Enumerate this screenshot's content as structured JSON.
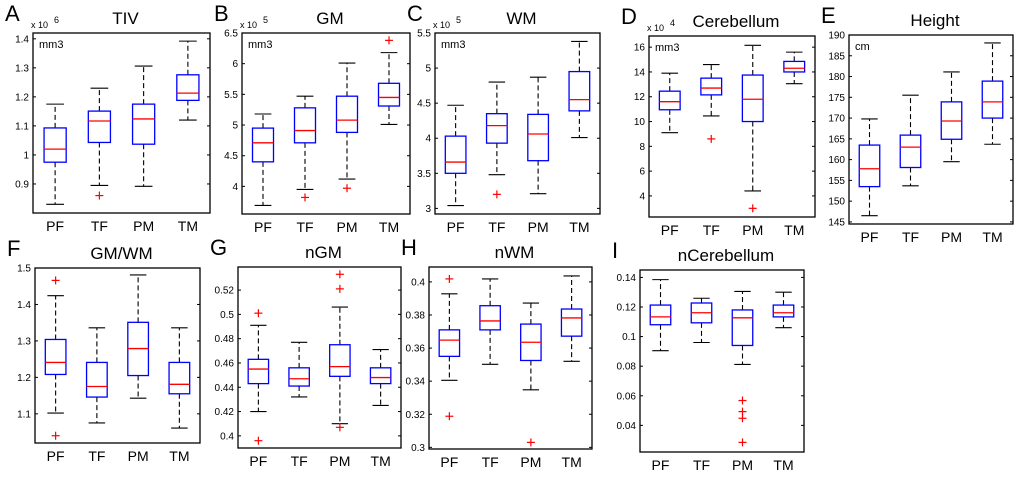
{
  "figure": {
    "colors": {
      "box": "#0000ff",
      "median": "#ff0000",
      "whisker": "#000000",
      "outlier": "#ff0000",
      "frame": "#000000"
    }
  },
  "chart_data": [
    {
      "type": "box",
      "letter": "A",
      "title": "TIV",
      "unit": "mm3",
      "multiplier": "x 10^6",
      "multiplier_base": "x 10",
      "multiplier_exp": "6",
      "categories": [
        "PF",
        "TF",
        "PM",
        "TM"
      ],
      "ylim": [
        0.8,
        1.42
      ],
      "yticks": [
        0.9,
        1,
        1.1,
        1.2,
        1.3,
        1.4
      ],
      "ytick_labels": [
        "0.9",
        "1",
        "1.1",
        "1.2",
        "1.3",
        "1.4"
      ],
      "boxes": [
        {
          "whisker_low": 0.83,
          "q1": 0.975,
          "median": 1.02,
          "q3": 1.093,
          "whisker_high": 1.175,
          "outliers": []
        },
        {
          "whisker_low": 0.895,
          "q1": 1.043,
          "median": 1.117,
          "q3": 1.151,
          "whisker_high": 1.23,
          "outliers": [
            0.86
          ]
        },
        {
          "whisker_low": 0.892,
          "q1": 1.037,
          "median": 1.124,
          "q3": 1.175,
          "whisker_high": 1.306,
          "outliers": []
        },
        {
          "whisker_low": 1.12,
          "q1": 1.188,
          "median": 1.213,
          "q3": 1.276,
          "whisker_high": 1.392,
          "outliers": []
        }
      ]
    },
    {
      "type": "box",
      "letter": "B",
      "title": "GM",
      "unit": "mm3",
      "multiplier": "x 10^5",
      "multiplier_base": "x 10",
      "multiplier_exp": "5",
      "categories": [
        "PF",
        "TF",
        "PM",
        "TM"
      ],
      "ylim": [
        3.55,
        6.5
      ],
      "yticks": [
        4,
        4.5,
        5,
        5.5,
        6,
        6.5
      ],
      "ytick_labels": [
        "4",
        "4.5",
        "5",
        "5.5",
        "6",
        "6.5"
      ],
      "boxes": [
        {
          "whisker_low": 3.69,
          "q1": 4.4,
          "median": 4.71,
          "q3": 4.95,
          "whisker_high": 5.18,
          "outliers": []
        },
        {
          "whisker_low": 3.95,
          "q1": 4.71,
          "median": 4.91,
          "q3": 5.28,
          "whisker_high": 5.47,
          "outliers": [
            3.82
          ]
        },
        {
          "whisker_low": 4.12,
          "q1": 4.88,
          "median": 5.08,
          "q3": 5.47,
          "whisker_high": 6.01,
          "outliers": [
            3.97
          ]
        },
        {
          "whisker_low": 5.01,
          "q1": 5.31,
          "median": 5.45,
          "q3": 5.68,
          "whisker_high": 6.18,
          "outliers": [
            6.38
          ]
        }
      ]
    },
    {
      "type": "box",
      "letter": "C",
      "title": "WM",
      "unit": "mm3",
      "multiplier": "x 10^5",
      "multiplier_base": "x 10",
      "multiplier_exp": "5",
      "categories": [
        "PF",
        "TF",
        "PM",
        "TM"
      ],
      "ylim": [
        2.92,
        5.5
      ],
      "yticks": [
        3,
        3.5,
        4,
        4.5,
        5,
        5.5
      ],
      "ytick_labels": [
        "3",
        "3.5",
        "4",
        "4.5",
        "5",
        "5.5"
      ],
      "boxes": [
        {
          "whisker_low": 3.04,
          "q1": 3.5,
          "median": 3.66,
          "q3": 4.03,
          "whisker_high": 4.47,
          "outliers": []
        },
        {
          "whisker_low": 3.48,
          "q1": 3.93,
          "median": 4.18,
          "q3": 4.35,
          "whisker_high": 4.8,
          "outliers": [
            3.2
          ]
        },
        {
          "whisker_low": 3.21,
          "q1": 3.68,
          "median": 4.06,
          "q3": 4.34,
          "whisker_high": 4.87,
          "outliers": []
        },
        {
          "whisker_low": 4.01,
          "q1": 4.39,
          "median": 4.55,
          "q3": 4.95,
          "whisker_high": 5.38,
          "outliers": []
        }
      ]
    },
    {
      "type": "box",
      "letter": "D",
      "title": "Cerebellum",
      "unit": "mm3",
      "multiplier": "x 10^4",
      "multiplier_base": "x 10",
      "multiplier_exp": "4",
      "categories": [
        "PF",
        "TF",
        "PM",
        "TM"
      ],
      "ylim": [
        2.3,
        16.9
      ],
      "yticks": [
        4,
        6,
        8,
        10,
        12,
        14,
        16
      ],
      "ytick_labels": [
        "4",
        "6",
        "8",
        "10",
        "12",
        "14",
        "16"
      ],
      "boxes": [
        {
          "whisker_low": 9.1,
          "q1": 10.95,
          "median": 11.6,
          "q3": 12.45,
          "whisker_high": 13.9,
          "outliers": []
        },
        {
          "whisker_low": 10.45,
          "q1": 12.15,
          "median": 12.7,
          "q3": 13.5,
          "whisker_high": 14.6,
          "outliers": [
            8.6
          ]
        },
        {
          "whisker_low": 4.4,
          "q1": 10.0,
          "median": 11.8,
          "q3": 13.75,
          "whisker_high": 16.15,
          "outliers": [
            3.0
          ]
        },
        {
          "whisker_low": 13.05,
          "q1": 14.0,
          "median": 14.3,
          "q3": 14.85,
          "whisker_high": 15.6,
          "outliers": []
        }
      ]
    },
    {
      "type": "box",
      "letter": "E",
      "title": "Height",
      "unit": "cm",
      "multiplier": "",
      "multiplier_base": "",
      "multiplier_exp": "",
      "categories": [
        "PF",
        "TF",
        "PM",
        "TM"
      ],
      "ylim": [
        144.5,
        190
      ],
      "yticks": [
        145,
        150,
        155,
        160,
        165,
        170,
        175,
        180,
        185,
        190
      ],
      "ytick_labels": [
        "145",
        "150",
        "155",
        "160",
        "165",
        "170",
        "175",
        "180",
        "185",
        "190"
      ],
      "boxes": [
        {
          "whisker_low": 146.5,
          "q1": 153.5,
          "median": 157.8,
          "q3": 163.5,
          "whisker_high": 169.8,
          "outliers": []
        },
        {
          "whisker_low": 153.7,
          "q1": 158.1,
          "median": 163.0,
          "q3": 165.9,
          "whisker_high": 175.5,
          "outliers": []
        },
        {
          "whisker_low": 159.5,
          "q1": 164.9,
          "median": 169.3,
          "q3": 173.9,
          "whisker_high": 181.1,
          "outliers": []
        },
        {
          "whisker_low": 163.7,
          "q1": 170.0,
          "median": 173.9,
          "q3": 178.9,
          "whisker_high": 188.1,
          "outliers": []
        }
      ]
    },
    {
      "type": "box",
      "letter": "F",
      "title": "GM/WM",
      "unit": "",
      "multiplier": "",
      "multiplier_base": "",
      "multiplier_exp": "",
      "categories": [
        "PF",
        "TF",
        "PM",
        "TM"
      ],
      "ylim": [
        1.02,
        1.5
      ],
      "yticks": [
        1.1,
        1.2,
        1.3,
        1.4,
        1.5
      ],
      "ytick_labels": [
        "1.1",
        "1.2",
        "1.3",
        "1.4",
        "1.5"
      ],
      "boxes": [
        {
          "whisker_low": 1.102,
          "q1": 1.208,
          "median": 1.241,
          "q3": 1.304,
          "whisker_high": 1.424,
          "outliers": [
            1.466,
            1.04
          ]
        },
        {
          "whisker_low": 1.075,
          "q1": 1.146,
          "median": 1.175,
          "q3": 1.241,
          "whisker_high": 1.336,
          "outliers": []
        },
        {
          "whisker_low": 1.143,
          "q1": 1.205,
          "median": 1.279,
          "q3": 1.351,
          "whisker_high": 1.481,
          "outliers": []
        },
        {
          "whisker_low": 1.061,
          "q1": 1.155,
          "median": 1.181,
          "q3": 1.241,
          "whisker_high": 1.336,
          "outliers": []
        }
      ]
    },
    {
      "type": "box",
      "letter": "G",
      "title": "nGM",
      "unit": "",
      "multiplier": "",
      "multiplier_base": "",
      "multiplier_exp": "",
      "categories": [
        "PF",
        "TF",
        "PM",
        "TM"
      ],
      "ylim": [
        0.39,
        0.539
      ],
      "yticks": [
        0.4,
        0.42,
        0.44,
        0.46,
        0.48,
        0.5,
        0.52
      ],
      "ytick_labels": [
        "0.4",
        "0.42",
        "0.44",
        "0.46",
        "0.48",
        "0.5",
        "0.52"
      ],
      "boxes": [
        {
          "whisker_low": 0.42,
          "q1": 0.443,
          "median": 0.455,
          "q3": 0.463,
          "whisker_high": 0.491,
          "outliers": [
            0.501,
            0.396
          ]
        },
        {
          "whisker_low": 0.432,
          "q1": 0.441,
          "median": 0.447,
          "q3": 0.456,
          "whisker_high": 0.477,
          "outliers": []
        },
        {
          "whisker_low": 0.41,
          "q1": 0.449,
          "median": 0.457,
          "q3": 0.475,
          "whisker_high": 0.506,
          "outliers": [
            0.533,
            0.521,
            0.407
          ]
        },
        {
          "whisker_low": 0.425,
          "q1": 0.443,
          "median": 0.448,
          "q3": 0.456,
          "whisker_high": 0.471,
          "outliers": []
        }
      ]
    },
    {
      "type": "box",
      "letter": "H",
      "title": "nWM",
      "unit": "",
      "multiplier": "",
      "multiplier_base": "",
      "multiplier_exp": "",
      "categories": [
        "PF",
        "TF",
        "PM",
        "TM"
      ],
      "ylim": [
        0.299,
        0.409
      ],
      "yticks": [
        0.3,
        0.32,
        0.34,
        0.36,
        0.38,
        0.4
      ],
      "ytick_labels": [
        "0.3",
        "0.32",
        "0.34",
        "0.36",
        "0.38",
        "0.4"
      ],
      "boxes": [
        {
          "whisker_low": 0.3405,
          "q1": 0.355,
          "median": 0.3648,
          "q3": 0.371,
          "whisker_high": 0.3928,
          "outliers": [
            0.4018,
            0.3188
          ]
        },
        {
          "whisker_low": 0.3502,
          "q1": 0.371,
          "median": 0.3764,
          "q3": 0.3856,
          "whisker_high": 0.4018,
          "outliers": []
        },
        {
          "whisker_low": 0.3348,
          "q1": 0.3525,
          "median": 0.3635,
          "q3": 0.3745,
          "whisker_high": 0.3872,
          "outliers": [
            0.303
          ]
        },
        {
          "whisker_low": 0.352,
          "q1": 0.3672,
          "median": 0.3782,
          "q3": 0.3836,
          "whisker_high": 0.4036,
          "outliers": []
        }
      ]
    },
    {
      "type": "box",
      "letter": "I",
      "title": "nCerebellum",
      "unit": "",
      "multiplier": "",
      "multiplier_base": "",
      "multiplier_exp": "",
      "categories": [
        "PF",
        "TF",
        "PM",
        "TM"
      ],
      "ylim": [
        0.022,
        0.145
      ],
      "yticks": [
        0.04,
        0.06,
        0.08,
        0.1,
        0.12,
        0.14
      ],
      "ytick_labels": [
        "0.04",
        "0.06",
        "0.08",
        "0.1",
        "0.12",
        "0.14"
      ],
      "boxes": [
        {
          "whisker_low": 0.0905,
          "q1": 0.108,
          "median": 0.1133,
          "q3": 0.1213,
          "whisker_high": 0.1385,
          "outliers": []
        },
        {
          "whisker_low": 0.096,
          "q1": 0.1093,
          "median": 0.1161,
          "q3": 0.1227,
          "whisker_high": 0.1259,
          "outliers": []
        },
        {
          "whisker_low": 0.0812,
          "q1": 0.094,
          "median": 0.1127,
          "q3": 0.118,
          "whisker_high": 0.1305,
          "outliers": [
            0.0568,
            0.0493,
            0.0448,
            0.0285
          ]
        },
        {
          "whisker_low": 0.106,
          "q1": 0.1133,
          "median": 0.1161,
          "q3": 0.1213,
          "whisker_high": 0.13,
          "outliers": []
        }
      ]
    }
  ]
}
